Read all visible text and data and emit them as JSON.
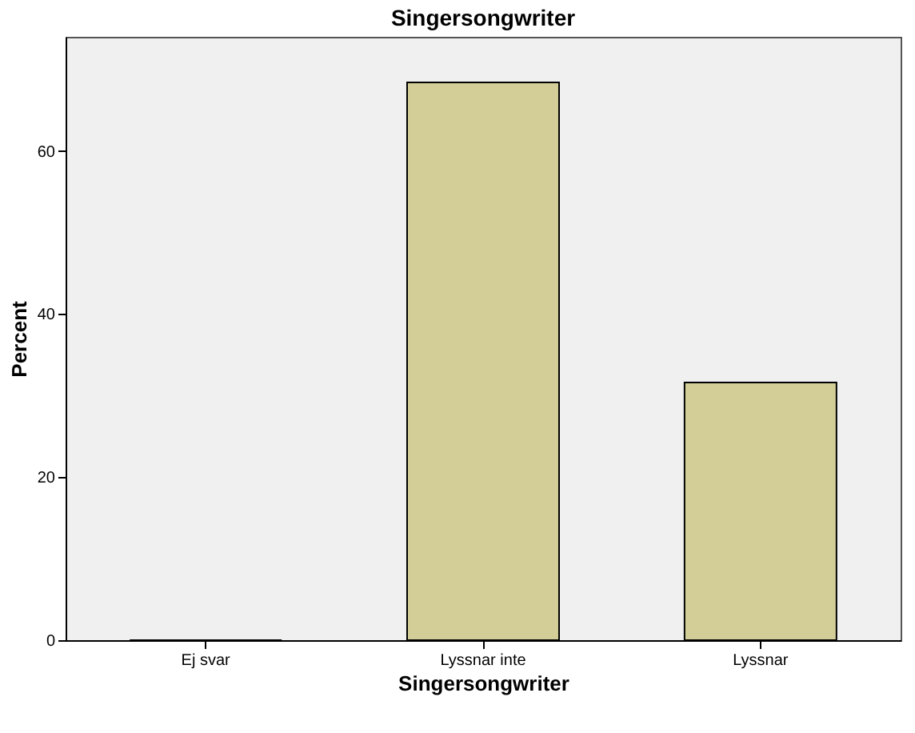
{
  "chart_data": {
    "type": "bar",
    "title": "Singersongwriter",
    "xlabel": "Singersongwriter",
    "ylabel": "Percent",
    "categories": [
      "Ej svar",
      "Lyssnar inte",
      "Lyssnar"
    ],
    "values": [
      0,
      68.4,
      31.6
    ],
    "color": "#d3ce97",
    "ylim": [
      0,
      74
    ],
    "yticks": [
      0,
      20,
      40,
      60
    ],
    "grid": false
  }
}
